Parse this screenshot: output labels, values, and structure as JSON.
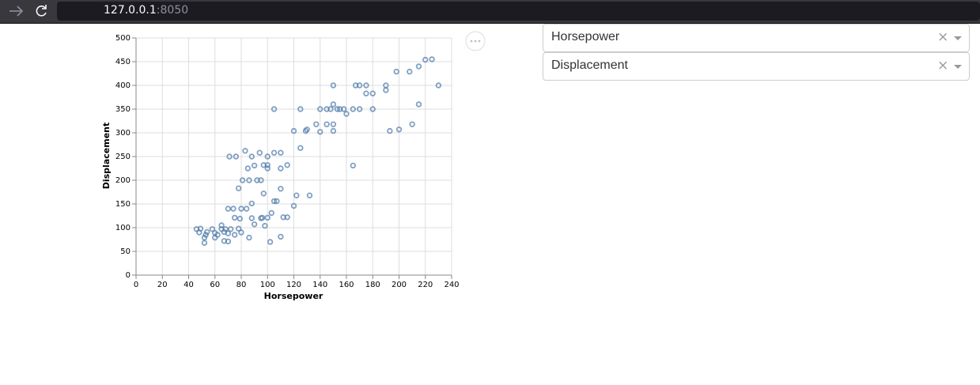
{
  "browser": {
    "host": "127.0.0.1",
    "port": ":8050"
  },
  "dropdowns": [
    {
      "value": "Horsepower"
    },
    {
      "value": "Displacement"
    }
  ],
  "chart_data": {
    "type": "scatter",
    "x_label": "Horsepower",
    "y_label": "Displacement",
    "color": "#4c78a8",
    "grid": true,
    "xlim": [
      0,
      240
    ],
    "ylim": [
      0,
      500
    ],
    "xticks": [
      0,
      20,
      40,
      60,
      80,
      100,
      120,
      140,
      160,
      180,
      200,
      220,
      240
    ],
    "yticks": [
      0,
      50,
      100,
      150,
      200,
      250,
      300,
      350,
      400,
      450,
      500
    ],
    "x": [
      46,
      48,
      49,
      52,
      53,
      52,
      54,
      58,
      60,
      60,
      62,
      65,
      65,
      67,
      67,
      68,
      70,
      70,
      70,
      71,
      72,
      74,
      75,
      75,
      76,
      78,
      78,
      79,
      80,
      80,
      81,
      83,
      84,
      85,
      86,
      86,
      88,
      88,
      88,
      90,
      90,
      92,
      94,
      95,
      95,
      96,
      97,
      97,
      98,
      100,
      100,
      100,
      100,
      102,
      103,
      105,
      105,
      105,
      107,
      110,
      110,
      110,
      110,
      112,
      115,
      115,
      120,
      120,
      122,
      125,
      125,
      129,
      130,
      132,
      137,
      140,
      140,
      145,
      145,
      148,
      150,
      150,
      150,
      150,
      153,
      155,
      158,
      160,
      165,
      165,
      167,
      170,
      170,
      175,
      175,
      180,
      180,
      190,
      190,
      193,
      198,
      200,
      208,
      210,
      215,
      215,
      220,
      225,
      230
    ],
    "y": [
      97,
      90,
      98,
      68,
      85,
      79,
      91,
      97,
      79,
      89,
      85,
      97,
      105,
      91,
      72,
      97,
      71,
      88,
      140,
      250,
      97,
      140,
      121,
      85,
      250,
      98,
      183,
      119,
      90,
      140,
      200,
      262,
      140,
      225,
      79,
      200,
      120,
      250,
      151,
      231,
      107,
      200,
      258,
      120,
      200,
      121,
      232,
      172,
      104,
      250,
      225,
      232,
      121,
      70,
      131,
      350,
      258,
      156,
      156,
      225,
      258,
      182,
      81,
      122,
      232,
      122,
      146,
      304,
      168,
      350,
      268,
      304,
      307,
      168,
      318,
      302,
      350,
      350,
      318,
      350,
      400,
      318,
      304,
      360,
      350,
      350,
      350,
      340,
      350,
      231,
      400,
      350,
      400,
      400,
      383,
      350,
      383,
      400,
      390,
      304,
      429,
      307,
      429,
      318,
      440,
      360,
      454,
      455,
      400
    ]
  }
}
